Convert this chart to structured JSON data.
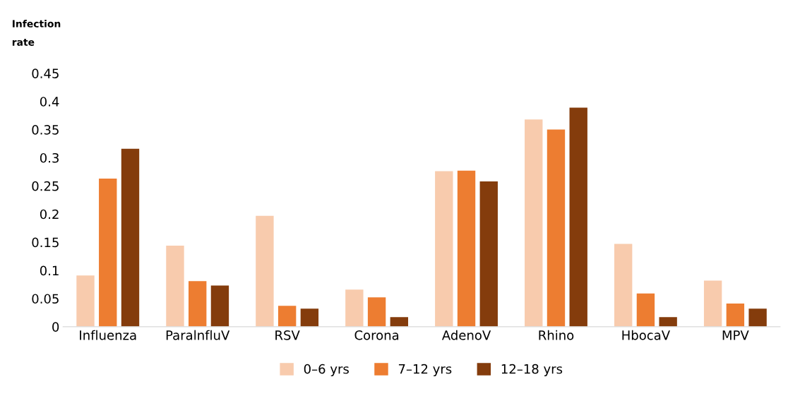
{
  "chart_data": {
    "type": "bar",
    "ylabel": "Infection\nrate",
    "categories": [
      "Influenza",
      "ParalnfluV",
      "RSV",
      "Corona",
      "AdenoV",
      "Rhino",
      "HbocaV",
      "MPV"
    ],
    "series": [
      {
        "name": "0–6 yrs",
        "color": "#f8cbad",
        "values": [
          0.091,
          0.144,
          0.197,
          0.066,
          0.276,
          0.368,
          0.147,
          0.082
        ]
      },
      {
        "name": "7–12 yrs",
        "color": "#ed7d31",
        "values": [
          0.263,
          0.081,
          0.037,
          0.052,
          0.277,
          0.35,
          0.059,
          0.041
        ]
      },
      {
        "name": "12–18 yrs",
        "color": "#843c0c",
        "values": [
          0.316,
          0.073,
          0.032,
          0.017,
          0.258,
          0.389,
          0.017,
          0.032
        ]
      }
    ],
    "ylim": [
      0,
      0.45
    ],
    "yticks": [
      0,
      0.05,
      0.1,
      0.15,
      0.2,
      0.25,
      0.3,
      0.35,
      0.4,
      0.45
    ],
    "grid": false,
    "legend": "bottom"
  }
}
